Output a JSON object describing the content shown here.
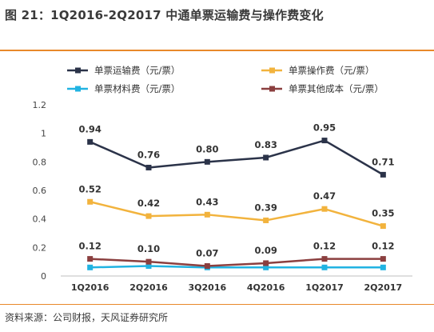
{
  "header": {
    "title": "图 21：1Q2016-2Q2017 中通单票运输费与操作费变化"
  },
  "footer": {
    "source": "资料来源：公司财报，天风证券研究所"
  },
  "chart_data": {
    "type": "line",
    "categories": [
      "1Q2016",
      "2Q2016",
      "3Q2016",
      "4Q2016",
      "1Q2017",
      "2Q2017"
    ],
    "ylim": [
      0,
      1.2
    ],
    "yticks": [
      0,
      0.2,
      0.4,
      0.6,
      0.8,
      1,
      1.2
    ],
    "ytick_labels": [
      "0",
      "0.2",
      "0.4",
      "0.6",
      "0.8",
      "1",
      "1.2"
    ],
    "grid": false,
    "legend_position": "top",
    "series": [
      {
        "name": "单票运输费（元/票）",
        "color": "#2b3349",
        "values": [
          0.94,
          0.76,
          0.8,
          0.83,
          0.95,
          0.71
        ],
        "labels": [
          "0.94",
          "0.76",
          "0.80",
          "0.83",
          "0.95",
          "0.71"
        ]
      },
      {
        "name": "单票操作费（元/票）",
        "color": "#f2b33d",
        "values": [
          0.52,
          0.42,
          0.43,
          0.39,
          0.47,
          0.35
        ],
        "labels": [
          "0.52",
          "0.42",
          "0.43",
          "0.39",
          "0.47",
          "0.35"
        ]
      },
      {
        "name": "单票材料费（元/票）",
        "color": "#21b3e2",
        "values": [
          0.06,
          0.07,
          0.06,
          0.06,
          0.06,
          0.06
        ],
        "labels": []
      },
      {
        "name": "单票其他成本（元/票）",
        "color": "#8b3f3f",
        "values": [
          0.12,
          0.1,
          0.07,
          0.09,
          0.12,
          0.12
        ],
        "labels": [
          "0.12",
          "0.10",
          "0.07",
          "0.09",
          "0.12",
          "0.12"
        ]
      }
    ]
  }
}
